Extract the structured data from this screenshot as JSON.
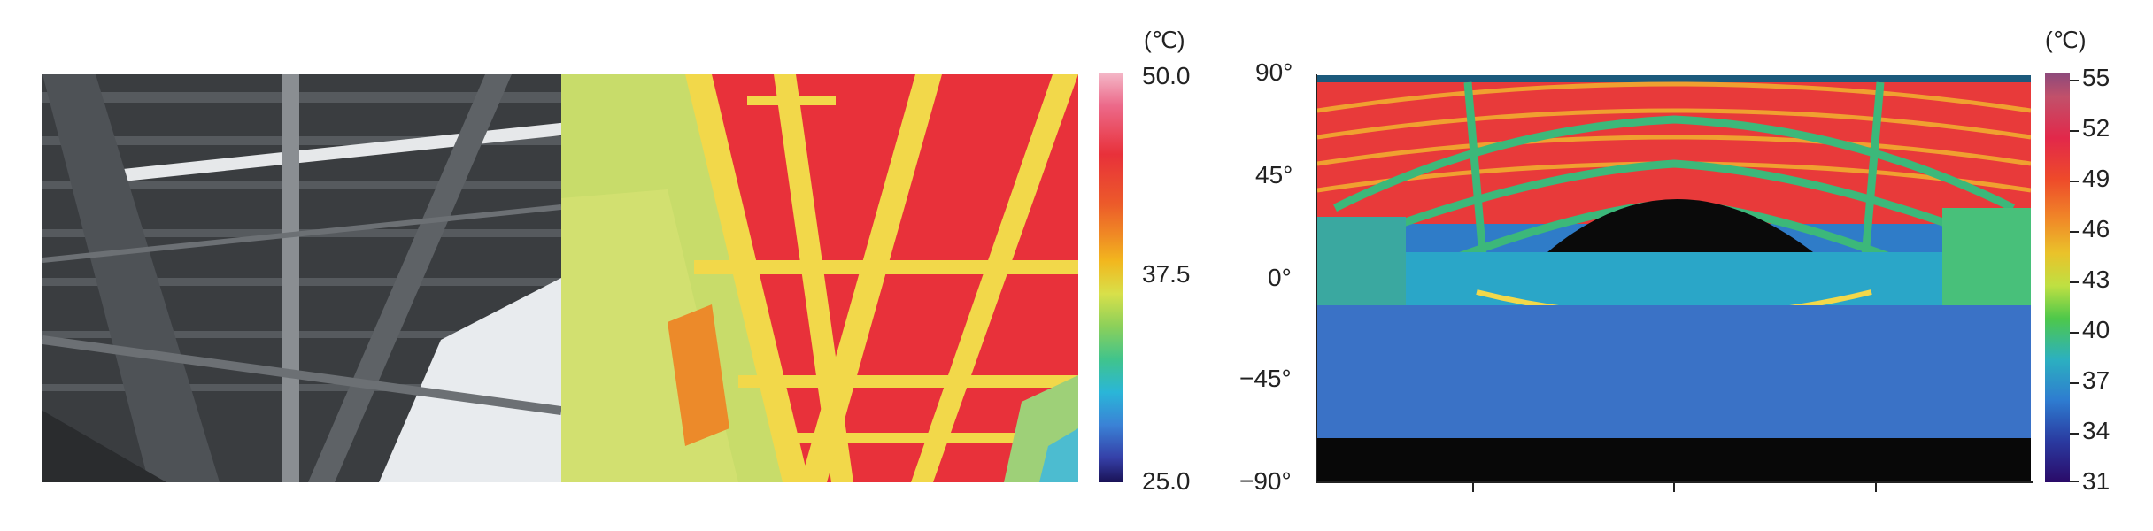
{
  "left_scale": {
    "unit": "(℃)",
    "ticks": [
      "50.0",
      "37.5",
      "25.0"
    ]
  },
  "right_scale": {
    "unit": "(℃)",
    "ticks": [
      "55",
      "52",
      "49",
      "46",
      "43",
      "40",
      "37",
      "34",
      "31"
    ]
  },
  "pano_axis": {
    "y_ticks": [
      "90°",
      "45°",
      "0°",
      "−45°",
      "−90°"
    ]
  },
  "colors": {
    "hot": "#e8313a",
    "warm": "#f2b71e",
    "mid": "#8bd05a",
    "cool": "#2ab6d8",
    "cold": "#1a1256"
  }
}
